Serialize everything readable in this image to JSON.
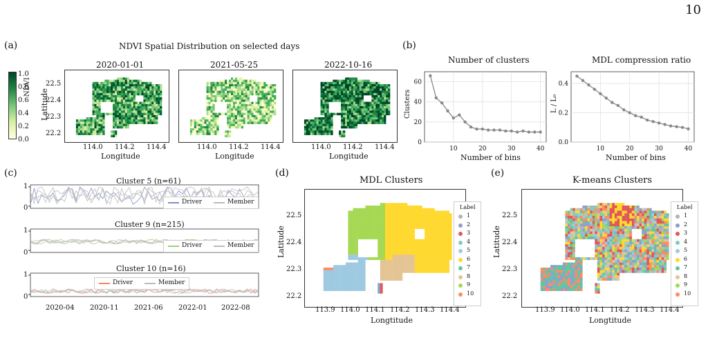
{
  "page": {
    "number": "10"
  },
  "panel_a": {
    "letter": "(a)",
    "title": "NDVI Spatial Distribution on selected days",
    "colorbar": {
      "label": "NDVI",
      "ticks": [
        "1.0",
        "0.8",
        "0.6",
        "0.4",
        "0.2",
        "0.0"
      ]
    },
    "maps": [
      {
        "date": "2020-01-01"
      },
      {
        "date": "2021-05-25"
      },
      {
        "date": "2022-10-16"
      }
    ],
    "ylabel": "Latitude",
    "xlabel": "Longitude",
    "yticks": [
      "22.5",
      "22.4",
      "22.3",
      "22.2"
    ],
    "xticks": [
      "114.0",
      "114.2",
      "114.4"
    ]
  },
  "panel_b": {
    "letter": "(b)",
    "left": {
      "title": "Number of clusters",
      "ylabel": "Clusters",
      "xlabel": "Number of bins",
      "yticks": [
        "0",
        "20",
        "40",
        "60"
      ],
      "xticks": [
        "10",
        "20",
        "30",
        "40"
      ]
    },
    "right": {
      "title": "MDL compression ratio",
      "ylabel": "L / L₀",
      "xlabel": "Number of bins",
      "yticks": [
        "0.0",
        "0.2",
        "0.4"
      ],
      "xticks": [
        "10",
        "20",
        "30",
        "40"
      ]
    }
  },
  "panel_c": {
    "letter": "(c)",
    "clusters": [
      {
        "title": "Cluster 5 (n=61)",
        "yticks": [
          "1",
          "0"
        ],
        "driver": "Driver",
        "member": "Member",
        "color": "#7f8fc4"
      },
      {
        "title": "Cluster 9 (n=215)",
        "yticks": [
          "1",
          "0"
        ],
        "driver": "Driver",
        "member": "Member",
        "color": "#9fd16a"
      },
      {
        "title": "Cluster 10 (n=16)",
        "yticks": [
          "1",
          "0"
        ],
        "driver": "Driver",
        "member": "Member",
        "color": "#ef8a62"
      }
    ],
    "xticks": [
      "2020-04",
      "2020-11",
      "2021-06",
      "2022-01",
      "2022-08"
    ]
  },
  "panel_d": {
    "letter": "(d)",
    "title": "MDL Clusters",
    "ylabel": "Latitude",
    "xlabel": "Longtitude",
    "yticks": [
      "22.5",
      "22.4",
      "22.3",
      "22.2"
    ],
    "xticks": [
      "113.9",
      "114.0",
      "114.1",
      "114.2",
      "114.3",
      "114.4"
    ]
  },
  "panel_e": {
    "letter": "(e)",
    "title": "K-means Clusters",
    "ylabel": "Latitude",
    "xlabel": "Longtitude",
    "yticks": [
      "22.5",
      "22.4",
      "22.3",
      "22.2"
    ],
    "xticks": [
      "113.9",
      "114.0",
      "114.1",
      "114.2",
      "114.3",
      "114.4"
    ]
  },
  "legend": {
    "title": "Label",
    "labels": [
      "1",
      "2",
      "3",
      "4",
      "5",
      "6",
      "7",
      "8",
      "9",
      "10"
    ],
    "colors": [
      "#b3b3b3",
      "#8da0cb",
      "#e15759",
      "#7fcdbb",
      "#9ecae1",
      "#ffd92f",
      "#66c2a5",
      "#e5c494",
      "#a6d854",
      "#fc8d62"
    ]
  },
  "chart_data": [
    {
      "type": "line",
      "title": "Number of clusters",
      "xlabel": "Number of bins",
      "ylabel": "Clusters",
      "x": [
        2,
        4,
        6,
        8,
        10,
        12,
        14,
        16,
        18,
        20,
        22,
        24,
        26,
        28,
        30,
        32,
        34,
        36,
        38,
        40
      ],
      "series": [
        {
          "values": [
            66,
            44,
            39,
            31,
            24,
            27,
            20,
            15,
            13,
            13,
            12,
            12,
            12,
            11,
            11,
            10,
            11,
            10,
            10,
            10
          ]
        }
      ],
      "xlim": [
        0,
        42
      ],
      "ylim": [
        0,
        70
      ],
      "grid": true
    },
    {
      "type": "line",
      "title": "MDL compression ratio",
      "xlabel": "Number of bins",
      "ylabel": "L / L₀",
      "x": [
        2,
        4,
        6,
        8,
        10,
        12,
        14,
        16,
        18,
        20,
        22,
        24,
        26,
        28,
        30,
        32,
        34,
        36,
        38,
        40
      ],
      "series": [
        {
          "values": [
            0.45,
            0.42,
            0.39,
            0.36,
            0.33,
            0.3,
            0.27,
            0.25,
            0.22,
            0.2,
            0.18,
            0.17,
            0.15,
            0.14,
            0.13,
            0.12,
            0.11,
            0.105,
            0.1,
            0.09
          ]
        }
      ],
      "xlim": [
        0,
        42
      ],
      "ylim": [
        0,
        0.48
      ],
      "grid": true
    }
  ]
}
